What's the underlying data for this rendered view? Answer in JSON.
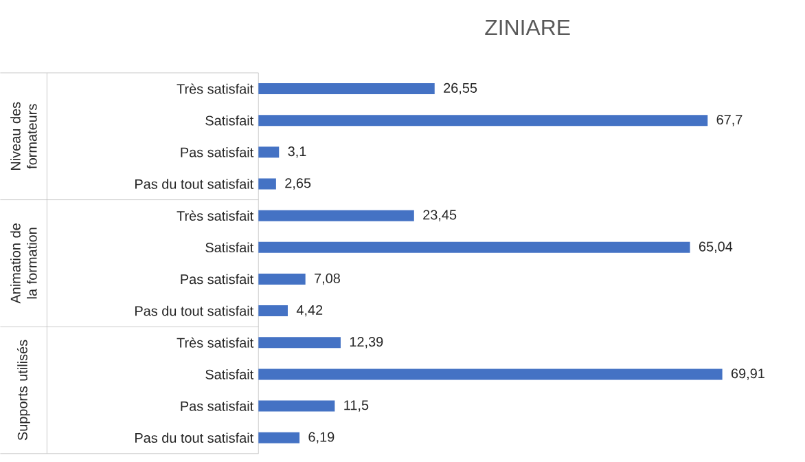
{
  "chart_data": {
    "type": "bar",
    "orientation": "horizontal",
    "title": "ZINIARE",
    "categories": [
      "Très satisfait",
      "Satisfait",
      "Pas satisfait",
      "Pas du tout satisfait",
      "Très satisfait",
      "Satisfait",
      "Pas satisfait",
      "Pas du tout satisfait",
      "Très satisfait",
      "Satisfait",
      "Pas satisfait",
      "Pas du tout satisfait"
    ],
    "values": [
      26.55,
      67.7,
      3.1,
      2.65,
      23.45,
      65.04,
      7.08,
      4.42,
      12.39,
      69.91,
      11.5,
      6.19
    ],
    "color": "#4472c4",
    "value_labels": [
      "26,55",
      "67,7",
      "3,1",
      "2,65",
      "23,45",
      "65,04",
      "7,08",
      "4,42",
      "12,39",
      "69,91",
      "11,5",
      "6,19"
    ],
    "annotations": [
      "Niveau des formateurs",
      "Animation de la formation",
      "Supports utilisés"
    ]
  }
}
